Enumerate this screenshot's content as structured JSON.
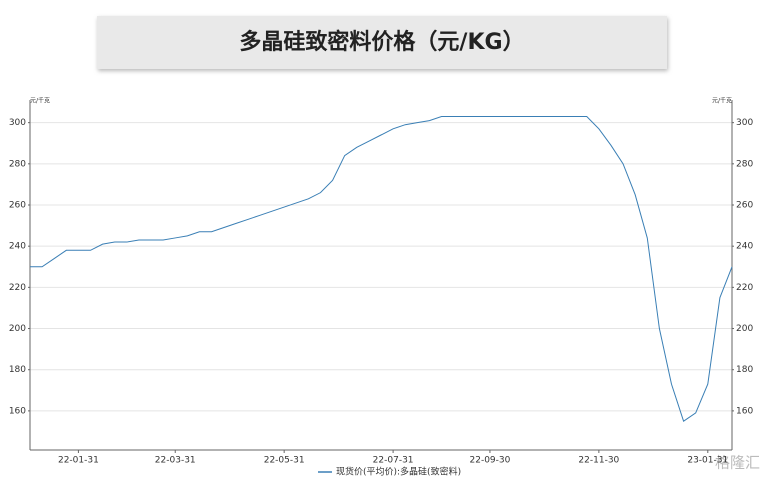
{
  "chart_data": {
    "type": "line",
    "title": "多晶硅致密料价格（元/KG）",
    "y_unit": "元/千克",
    "categories": [
      null,
      null,
      null,
      null,
      "22-01-31",
      null,
      null,
      null,
      null,
      null,
      null,
      null,
      "22-03-31",
      null,
      null,
      null,
      null,
      null,
      null,
      null,
      null,
      "22-05-31",
      null,
      null,
      null,
      null,
      null,
      null,
      null,
      null,
      "22-07-31",
      null,
      null,
      null,
      null,
      null,
      null,
      null,
      "22-09-30",
      null,
      null,
      null,
      null,
      null,
      null,
      null,
      null,
      "22-11-30",
      null,
      null,
      null,
      null,
      null,
      null,
      null,
      null,
      "23-01-31",
      null,
      null
    ],
    "series": [
      {
        "name": "现货价(平均价):多晶硅(致密料)",
        "color": "#3a7fb5",
        "values": [
          230,
          230,
          234,
          238,
          238,
          238,
          241,
          242,
          242,
          243,
          243,
          243,
          244,
          245,
          247,
          247,
          249,
          251,
          253,
          255,
          257,
          259,
          261,
          263,
          266,
          272,
          284,
          288,
          291,
          294,
          297,
          299,
          300,
          301,
          303,
          303,
          303,
          303,
          303,
          303,
          303,
          303,
          303,
          303,
          303,
          303,
          303,
          297,
          289,
          280,
          265,
          244,
          200,
          173,
          155,
          159,
          173,
          215,
          230
        ]
      }
    ],
    "ylim": [
      141,
      311
    ],
    "yticks": [
      160,
      180,
      200,
      220,
      240,
      260,
      280,
      300
    ],
    "grid": true,
    "watermark": "格隆汇"
  }
}
